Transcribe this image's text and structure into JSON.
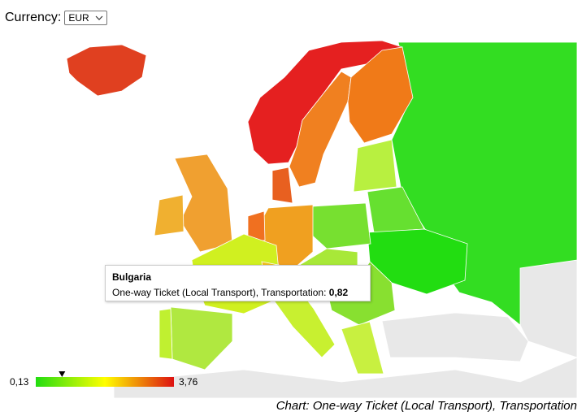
{
  "header": {
    "label": "Currency:",
    "currency": "EUR"
  },
  "tooltip": {
    "title": "Bulgaria",
    "label": "One-way Ticket (Local Transport), Transportation:",
    "value": {
      "value": 0.82,
      "label": "0,82"
    }
  },
  "legend": {
    "min": {
      "value": 0.13,
      "label": "0,13"
    },
    "max": {
      "value": 3.76,
      "label": "3,76"
    }
  },
  "caption": "Chart: One-way Ticket (Local Transport), Transportation"
}
